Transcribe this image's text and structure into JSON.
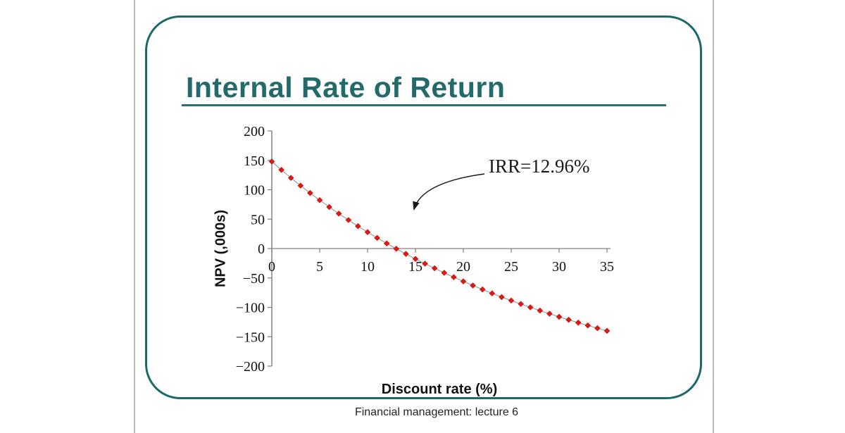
{
  "slide": {
    "title": "Internal Rate of Return",
    "footer": "Financial management: lecture 6",
    "accent_color": "#1d6868"
  },
  "chart_data": {
    "type": "line",
    "title": "",
    "xlabel": "Discount rate (%)",
    "ylabel": "NPV (,000s)",
    "xlim": [
      0,
      35
    ],
    "ylim": [
      -200,
      200
    ],
    "x_ticks": [
      0,
      5,
      10,
      15,
      20,
      25,
      30,
      35
    ],
    "y_ticks": [
      200,
      150,
      100,
      50,
      0,
      -50,
      -100,
      -150,
      -200
    ],
    "grid": false,
    "legend_position": "none",
    "marker": "diamond",
    "marker_color": "#e01812",
    "line_color": "#999999",
    "axis_color": "#808080",
    "series": [
      {
        "name": "NPV",
        "x": [
          0,
          1,
          2,
          3,
          4,
          5,
          6,
          7,
          8,
          9,
          10,
          11,
          12,
          13,
          14,
          15,
          16,
          17,
          18,
          19,
          20,
          21,
          22,
          23,
          24,
          25,
          26,
          27,
          28,
          29,
          30,
          31,
          32,
          33,
          34,
          35
        ],
        "values": [
          148.0,
          133.8,
          120.2,
          107.1,
          94.5,
          82.3,
          70.6,
          59.4,
          48.5,
          38.0,
          27.9,
          18.1,
          8.7,
          -0.4,
          -9.1,
          -17.6,
          -25.7,
          -33.6,
          -41.3,
          -48.7,
          -55.9,
          -62.9,
          -69.6,
          -76.2,
          -82.6,
          -88.4,
          -94.3,
          -100.0,
          -105.5,
          -110.9,
          -116.1,
          -121.2,
          -126.1,
          -130.8,
          -135.5,
          -140.0
        ]
      }
    ],
    "annotation": {
      "text": "IRR=12.96%",
      "points_to": "zero-crossing of NPV curve near discount rate 13%"
    }
  }
}
